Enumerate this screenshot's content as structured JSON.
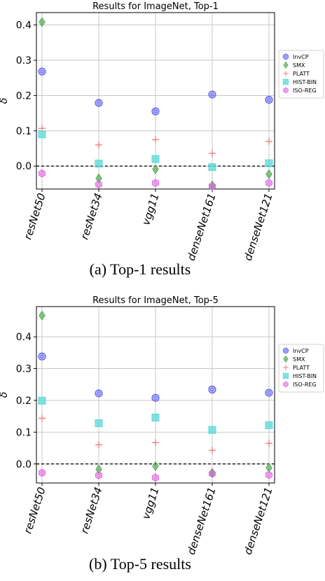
{
  "chart_data": [
    {
      "type": "scatter",
      "title": "Results for ImageNet, Top-1",
      "xlabel": "",
      "ylabel": "δ",
      "ylim": [
        -0.065,
        0.435
      ],
      "yticks": [
        0.0,
        0.1,
        0.2,
        0.3,
        0.4
      ],
      "ytick_labels": [
        "0.0",
        "0.1",
        "0.2",
        "0.3",
        "0.4"
      ],
      "categories": [
        "resNet50",
        "resNet34",
        "vgg11",
        "denseNet161",
        "denseNet121"
      ],
      "grid": true,
      "baseline": 0.0,
      "legend_position": "right",
      "caption": "(a) Top-1 results",
      "series": [
        {
          "name": "InvCP",
          "color": "#6060f0",
          "marker": "circle",
          "values": [
            0.268,
            0.179,
            0.155,
            0.203,
            0.188
          ]
        },
        {
          "name": "SMX",
          "color": "#50a850",
          "marker": "diamond",
          "values": [
            0.408,
            -0.035,
            -0.009,
            -0.055,
            -0.023
          ]
        },
        {
          "name": "PLATT",
          "color": "#f07878",
          "marker": "plus",
          "values": [
            0.107,
            0.06,
            0.075,
            0.036,
            0.07
          ]
        },
        {
          "name": "HIST-BIN",
          "color": "#58d8d8",
          "marker": "square",
          "values": [
            0.09,
            0.007,
            0.02,
            -0.003,
            0.008
          ]
        },
        {
          "name": "ISO-REG",
          "color": "#e060e0",
          "marker": "hexagon",
          "values": [
            -0.021,
            -0.052,
            -0.048,
            -0.057,
            -0.048
          ]
        }
      ]
    },
    {
      "type": "scatter",
      "title": "Results for ImageNet, Top-5",
      "xlabel": "",
      "ylabel": "δ",
      "ylim": [
        -0.06,
        0.495
      ],
      "yticks": [
        0.0,
        0.1,
        0.2,
        0.3,
        0.4
      ],
      "ytick_labels": [
        "0.0",
        "0.1",
        "0.2",
        "0.3",
        "0.4"
      ],
      "categories": [
        "resNet50",
        "resNet34",
        "vgg11",
        "denseNet161",
        "denseNet121"
      ],
      "grid": true,
      "baseline": 0.0,
      "legend_position": "right",
      "caption": "(b) Top-5 results",
      "series": [
        {
          "name": "InvCP",
          "color": "#6060f0",
          "marker": "circle",
          "values": [
            0.338,
            0.222,
            0.208,
            0.234,
            0.224
          ]
        },
        {
          "name": "SMX",
          "color": "#50a850",
          "marker": "diamond",
          "values": [
            0.467,
            -0.017,
            -0.007,
            -0.028,
            -0.012
          ]
        },
        {
          "name": "PLATT",
          "color": "#f07878",
          "marker": "plus",
          "values": [
            0.144,
            0.06,
            0.067,
            0.043,
            0.065
          ]
        },
        {
          "name": "HIST-BIN",
          "color": "#58d8d8",
          "marker": "square",
          "values": [
            0.199,
            0.128,
            0.146,
            0.107,
            0.122
          ]
        },
        {
          "name": "ISO-REG",
          "color": "#e060e0",
          "marker": "hexagon",
          "values": [
            -0.028,
            -0.036,
            -0.043,
            -0.031,
            -0.035
          ]
        }
      ]
    }
  ]
}
